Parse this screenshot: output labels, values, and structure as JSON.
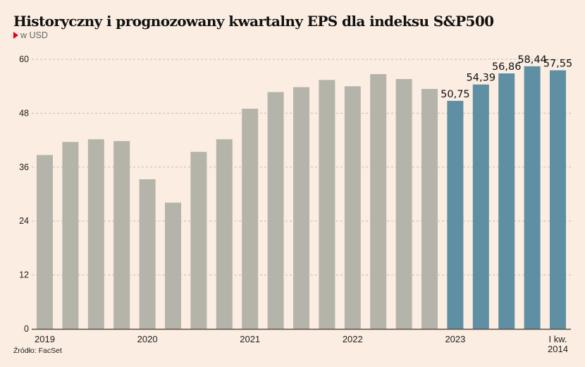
{
  "header": {
    "title": "Historyczny i prognozowany kwartalny EPS dla indeksu S&P500",
    "subtitle": "w USD"
  },
  "footer": {
    "source": "Źródło: FacSet"
  },
  "colors": {
    "background": "#fbede1",
    "historical_bar": "#b5b4aa",
    "forecast_bar": "#5f8fa2",
    "gridline": "#c9bcae",
    "axis": "#5a5048",
    "accent_marker": "#e3001b"
  },
  "chart_data": {
    "type": "bar",
    "title": "Historyczny i prognozowany kwartalny EPS dla indeksu S&P500",
    "subtitle": "w USD",
    "xlabel": "",
    "ylabel": "",
    "ylim": [
      0,
      60
    ],
    "yticks": [
      "0",
      "12",
      "24",
      "36",
      "48",
      "60"
    ],
    "ytick_values": [
      0,
      12,
      24,
      36,
      48,
      60
    ],
    "grid": true,
    "x_tick_labels": [
      {
        "index": 0,
        "label": "2019"
      },
      {
        "index": 4,
        "label": "2020"
      },
      {
        "index": 8,
        "label": "2021"
      },
      {
        "index": 12,
        "label": "2022"
      },
      {
        "index": 16,
        "label": "2023"
      },
      {
        "index": 20,
        "label": "I kw.",
        "label2": "2014"
      }
    ],
    "series": [
      {
        "name": "Historyczny",
        "color": "#b5b4aa",
        "values": [
          38.7,
          41.6,
          42.2,
          41.8,
          33.3,
          28.1,
          39.4,
          42.2,
          49.0,
          52.7,
          53.8,
          55.4,
          54.0,
          56.7,
          55.6,
          53.4,
          null,
          null,
          null,
          null,
          null
        ]
      },
      {
        "name": "Prognozowany",
        "color": "#5f8fa2",
        "values": [
          null,
          null,
          null,
          null,
          null,
          null,
          null,
          null,
          null,
          null,
          null,
          null,
          null,
          null,
          null,
          null,
          50.75,
          54.39,
          56.86,
          58.44,
          57.55
        ],
        "data_labels": [
          "50,75",
          "54,39",
          "56,86",
          "58,44",
          "57,55"
        ]
      }
    ]
  }
}
